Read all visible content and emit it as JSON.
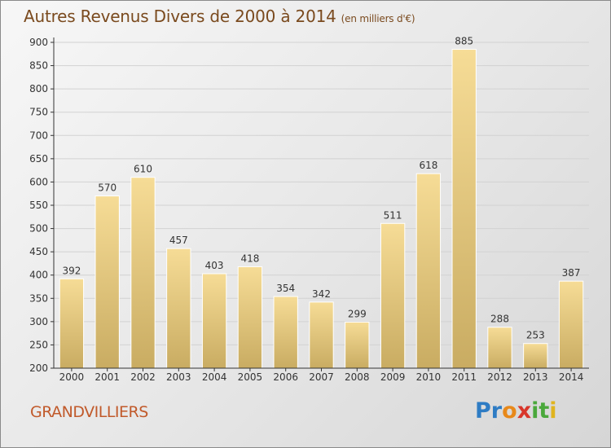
{
  "title": "Autres Revenus Divers de 2000 à 2014",
  "unit": "(en milliers d'€)",
  "commune": "GRANDVILLIERS",
  "logo": {
    "letters": [
      {
        "ch": "P",
        "color": "#2e7cc4"
      },
      {
        "ch": "r",
        "color": "#2e7cc4"
      },
      {
        "ch": "o",
        "color": "#e8891a"
      },
      {
        "ch": "x",
        "color": "#d8362b"
      },
      {
        "ch": "i",
        "color": "#4aa83b"
      },
      {
        "ch": "t",
        "color": "#4aa83b"
      },
      {
        "ch": "i",
        "color": "#e0b41e"
      }
    ]
  },
  "chart_data": {
    "type": "bar",
    "title": "Autres Revenus Divers de 2000 à 2014",
    "ylabel": "",
    "xlabel": "",
    "categories": [
      "2000",
      "2001",
      "2002",
      "2003",
      "2004",
      "2005",
      "2006",
      "2007",
      "2008",
      "2009",
      "2010",
      "2011",
      "2012",
      "2013",
      "2014"
    ],
    "values": [
      392,
      570,
      610,
      457,
      403,
      418,
      354,
      342,
      299,
      511,
      618,
      885,
      288,
      253,
      387
    ],
    "ylim": [
      200,
      900
    ],
    "yticks": [
      200,
      250,
      300,
      350,
      400,
      450,
      500,
      550,
      600,
      650,
      700,
      750,
      800,
      850,
      900
    ],
    "grid": true,
    "legend": "none",
    "colors": {
      "bar_light": "#f6dc96",
      "bar_dark": "#c9ac62",
      "grid": "#d2d2d2",
      "axis": "#333333"
    }
  }
}
